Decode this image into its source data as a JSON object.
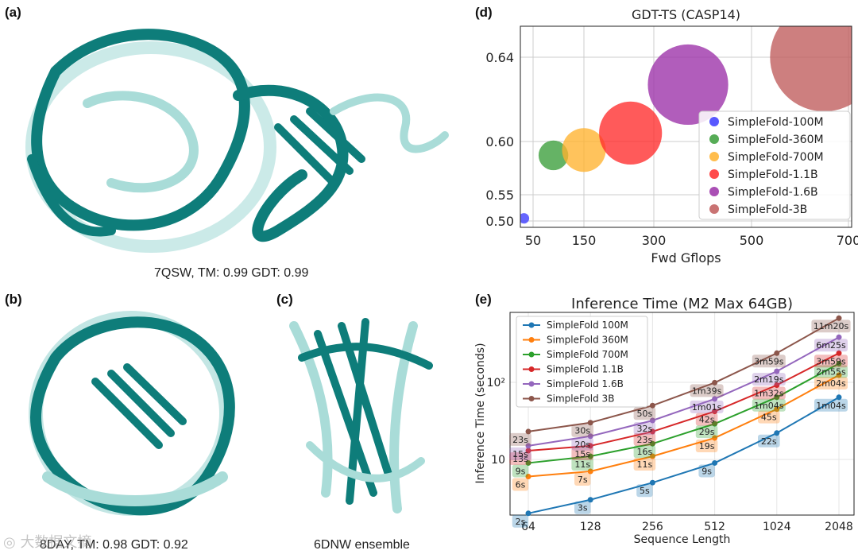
{
  "panels": {
    "a": {
      "letter": "(a)",
      "caption": "7QSW, TM: 0.99 GDT: 0.99"
    },
    "b": {
      "letter": "(b)",
      "caption": "8DAY, TM: 0.98 GDT: 0.92"
    },
    "c": {
      "letter": "(c)",
      "caption": "6DNW ensemble"
    },
    "d": {
      "letter": "(d)"
    },
    "e": {
      "letter": "(e)"
    }
  },
  "protein_colors": {
    "dark": "#0e7d7a",
    "light": "#a9dcd8"
  },
  "watermark": "大数据文摘",
  "chart_data": [
    {
      "type": "scatter",
      "title": "GDT-TS (CASP14)",
      "xlabel": "Fwd Gflops",
      "ylabel": "",
      "x_ticks": [
        "50",
        "150",
        "300",
        "500",
        "700"
      ],
      "y_ticks": [
        "0.50",
        "0.55",
        "0.60",
        "0.64"
      ],
      "grid": true,
      "legend_position": "right",
      "series": [
        {
          "name": "SimpleFold-100M",
          "x": 32,
          "y": 0.505,
          "color": "#3b3bff",
          "size": 0.06
        },
        {
          "name": "SimpleFold-360M",
          "x": 90,
          "y": 0.587,
          "color": "#3a9e3a",
          "size": 0.17
        },
        {
          "name": "SimpleFold-700M",
          "x": 150,
          "y": 0.592,
          "color": "#ffb22e",
          "size": 0.25
        },
        {
          "name": "SimpleFold-1.1B",
          "x": 250,
          "y": 0.604,
          "color": "#ff2b2b",
          "size": 0.36
        },
        {
          "name": "SimpleFold-1.6B",
          "x": 370,
          "y": 0.627,
          "color": "#9b30a8",
          "size": 0.46
        },
        {
          "name": "SimpleFold-3B",
          "x": 650,
          "y": 0.64,
          "color": "#bf5b5b",
          "size": 0.62
        }
      ]
    },
    {
      "type": "line",
      "title": "Inference Time (M2 Max 64GB)",
      "xlabel": "Sequence Length",
      "ylabel": "Inference Time (seconds)",
      "x": [
        64,
        128,
        256,
        512,
        1024,
        2048
      ],
      "x_ticks": [
        "64",
        "128",
        "256",
        "512",
        "1024",
        "2048"
      ],
      "y_ticks": [
        "10",
        "10²"
      ],
      "y_scale": "log",
      "grid": true,
      "legend_position": "top-left",
      "series": [
        {
          "name": "SimpleFold 100M",
          "color": "#1f77b4",
          "values": [
            2,
            3,
            5,
            9,
            22,
            64
          ],
          "labels": [
            "2s",
            "3s",
            "5s",
            "9s",
            "22s",
            "1m04s"
          ]
        },
        {
          "name": "SimpleFold 360M",
          "color": "#ff7f0e",
          "values": [
            6,
            7,
            11,
            19,
            45,
            124
          ],
          "labels": [
            "6s",
            "7s",
            "11s",
            "19s",
            "45s",
            "2m04s"
          ]
        },
        {
          "name": "SimpleFold 700M",
          "color": "#2ca02c",
          "values": [
            9,
            11,
            16,
            29,
            64,
            175
          ],
          "labels": [
            "9s",
            "11s",
            "16s",
            "29s",
            "1m04s",
            "2m55s"
          ]
        },
        {
          "name": "SimpleFold 1.1B",
          "color": "#d62728",
          "values": [
            13,
            15,
            23,
            42,
            92,
            239
          ],
          "labels": [
            "13s",
            "15s",
            "23s",
            "42s",
            "1m32s",
            "3m59s"
          ]
        },
        {
          "name": "SimpleFold 1.6B",
          "color": "#9467bd",
          "values": [
            15,
            20,
            32,
            61,
            139,
            385
          ],
          "labels": [
            "15s",
            "20s",
            "32s",
            "1m01s",
            "2m19s",
            "6m25s"
          ]
        },
        {
          "name": "SimpleFold 3B",
          "color": "#8c564b",
          "values": [
            23,
            30,
            50,
            99,
            239,
            680
          ],
          "labels": [
            "23s",
            "30s",
            "50s",
            "1m39s",
            "3m59s",
            "11m20s"
          ]
        }
      ]
    }
  ]
}
